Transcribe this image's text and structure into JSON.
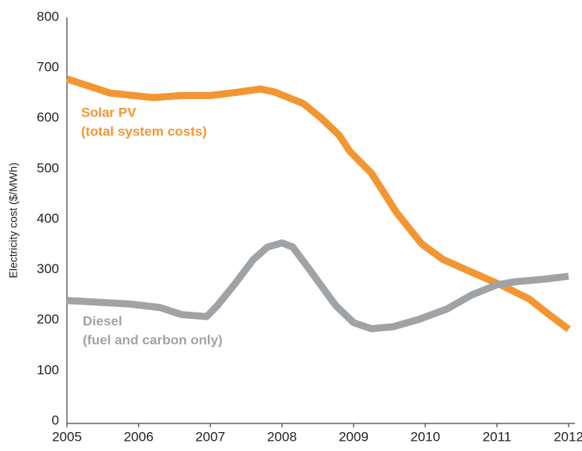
{
  "chart_data": {
    "type": "line",
    "y_label": "Electricity cost ($/MWh)",
    "xlim": [
      2005,
      2012
    ],
    "xticks": [
      2005,
      2006,
      2007,
      2008,
      2009,
      2010,
      2011,
      2012
    ],
    "ylim": [
      0,
      800
    ],
    "yticks": [
      0,
      100,
      200,
      300,
      400,
      500,
      600,
      700,
      800
    ],
    "series": [
      {
        "name": "Solar PV",
        "annotation": "(total system costs)",
        "color": "#f39632",
        "x": [
          2005,
          2005.6,
          2006.2,
          2006.6,
          2007.0,
          2007.4,
          2007.7,
          2007.9,
          2008.3,
          2008.55,
          2008.8,
          2008.95,
          2009.25,
          2009.6,
          2009.95,
          2010.25,
          2010.65,
          2011.05,
          2011.45,
          2011.7,
          2012
        ],
        "values": [
          678,
          650,
          641,
          645,
          645,
          652,
          658,
          652,
          629,
          600,
          566,
          534,
          491,
          413,
          351,
          320,
          295,
          270,
          242,
          214,
          182
        ]
      },
      {
        "name": "Diesel",
        "annotation": "(fuel and carbon only)",
        "color": "#a0a3a6",
        "x": [
          2005,
          2005.88,
          2006.3,
          2006.6,
          2006.95,
          2007.1,
          2007.35,
          2007.6,
          2007.8,
          2008.0,
          2008.15,
          2008.35,
          2008.75,
          2009.0,
          2009.25,
          2009.55,
          2009.9,
          2010.3,
          2010.65,
          2011.0,
          2011.25,
          2011.65,
          2012
        ],
        "values": [
          239,
          232,
          225,
          211,
          207,
          229,
          273,
          320,
          345,
          353,
          345,
          307,
          229,
          195,
          183,
          187,
          201,
          222,
          250,
          270,
          276,
          281,
          287
        ]
      }
    ]
  }
}
